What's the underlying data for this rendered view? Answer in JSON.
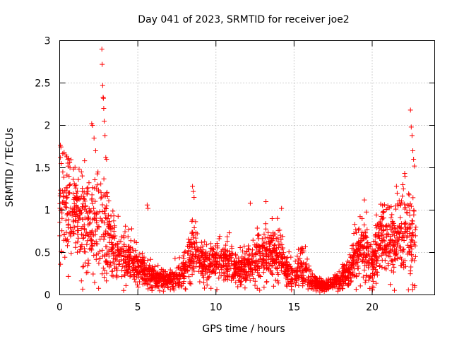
{
  "chart_data": {
    "type": "scatter",
    "title": "Day 041 of 2023, SRMTID for receiver joe2",
    "xlabel": "GPS time / hours",
    "ylabel": "SRMTID / TECUs",
    "xlim": [
      0,
      24
    ],
    "ylim": [
      0,
      3
    ],
    "xticks": [
      0,
      5,
      10,
      15,
      20
    ],
    "yticks": [
      0,
      0.5,
      1,
      1.5,
      2,
      2.5,
      3
    ],
    "xtick_labels": [
      "0",
      "5",
      "10",
      "15",
      "20"
    ],
    "ytick_labels": [
      "0",
      "0.5",
      "1",
      "1.5",
      "2",
      "2.5",
      "3"
    ],
    "grid": true,
    "marker": "plus",
    "color": "#ff0000",
    "series": [
      {
        "name": "SRMTID",
        "level_profile": [
          [
            0.0,
            1.0,
            0.35
          ],
          [
            0.5,
            1.1,
            0.35
          ],
          [
            1.0,
            0.95,
            0.3
          ],
          [
            1.5,
            0.8,
            0.3
          ],
          [
            2.0,
            0.75,
            0.3
          ],
          [
            2.5,
            0.85,
            0.35
          ],
          [
            3.0,
            0.75,
            0.3
          ],
          [
            3.5,
            0.55,
            0.2
          ],
          [
            4.0,
            0.45,
            0.15
          ],
          [
            4.5,
            0.42,
            0.13
          ],
          [
            5.0,
            0.35,
            0.12
          ],
          [
            5.5,
            0.25,
            0.08
          ],
          [
            6.0,
            0.22,
            0.07
          ],
          [
            6.5,
            0.18,
            0.06
          ],
          [
            7.0,
            0.17,
            0.06
          ],
          [
            7.5,
            0.2,
            0.07
          ],
          [
            8.0,
            0.3,
            0.1
          ],
          [
            8.5,
            0.55,
            0.2
          ],
          [
            9.0,
            0.4,
            0.14
          ],
          [
            9.5,
            0.35,
            0.12
          ],
          [
            10.0,
            0.38,
            0.12
          ],
          [
            10.5,
            0.4,
            0.12
          ],
          [
            11.0,
            0.35,
            0.12
          ],
          [
            11.5,
            0.3,
            0.1
          ],
          [
            12.0,
            0.32,
            0.1
          ],
          [
            12.5,
            0.4,
            0.14
          ],
          [
            13.0,
            0.5,
            0.15
          ],
          [
            13.5,
            0.45,
            0.15
          ],
          [
            14.0,
            0.5,
            0.18
          ],
          [
            14.5,
            0.3,
            0.1
          ],
          [
            15.0,
            0.22,
            0.07
          ],
          [
            15.5,
            0.35,
            0.12
          ],
          [
            16.0,
            0.18,
            0.06
          ],
          [
            16.5,
            0.12,
            0.04
          ],
          [
            17.0,
            0.1,
            0.03
          ],
          [
            17.5,
            0.15,
            0.05
          ],
          [
            18.0,
            0.18,
            0.06
          ],
          [
            18.5,
            0.28,
            0.09
          ],
          [
            19.0,
            0.45,
            0.15
          ],
          [
            19.5,
            0.55,
            0.18
          ],
          [
            20.0,
            0.3,
            0.15
          ],
          [
            20.5,
            0.65,
            0.2
          ],
          [
            21.0,
            0.7,
            0.22
          ],
          [
            21.5,
            0.6,
            0.2
          ],
          [
            22.0,
            0.75,
            0.25
          ],
          [
            22.5,
            0.7,
            0.25
          ],
          [
            22.8,
            0.6,
            0.2
          ]
        ],
        "peaks": [
          [
            0.05,
            1.62
          ],
          [
            0.1,
            1.55
          ],
          [
            0.2,
            1.45
          ],
          [
            0.4,
            1.65
          ],
          [
            0.6,
            1.4
          ],
          [
            2.05,
            2.02
          ],
          [
            2.1,
            2.0
          ],
          [
            2.2,
            1.85
          ],
          [
            2.3,
            1.7
          ],
          [
            2.45,
            1.45
          ],
          [
            2.7,
            2.9
          ],
          [
            2.72,
            2.72
          ],
          [
            2.75,
            2.47
          ],
          [
            2.78,
            2.33
          ],
          [
            2.8,
            2.32
          ],
          [
            2.82,
            2.2
          ],
          [
            2.85,
            2.05
          ],
          [
            2.9,
            1.88
          ],
          [
            2.95,
            1.62
          ],
          [
            3.0,
            1.6
          ],
          [
            8.5,
            1.28
          ],
          [
            8.55,
            1.22
          ],
          [
            8.6,
            1.15
          ],
          [
            5.6,
            1.06
          ],
          [
            5.65,
            1.02
          ],
          [
            12.2,
            1.08
          ],
          [
            13.2,
            1.1
          ],
          [
            14.2,
            1.02
          ],
          [
            19.5,
            1.12
          ],
          [
            21.0,
            1.05
          ],
          [
            21.6,
            1.2
          ],
          [
            22.0,
            1.25
          ],
          [
            22.1,
            1.4
          ],
          [
            22.45,
            2.18
          ],
          [
            22.5,
            1.98
          ],
          [
            22.55,
            1.88
          ],
          [
            22.6,
            1.7
          ],
          [
            22.65,
            1.6
          ],
          [
            22.7,
            1.52
          ]
        ],
        "count": 2600
      }
    ]
  }
}
